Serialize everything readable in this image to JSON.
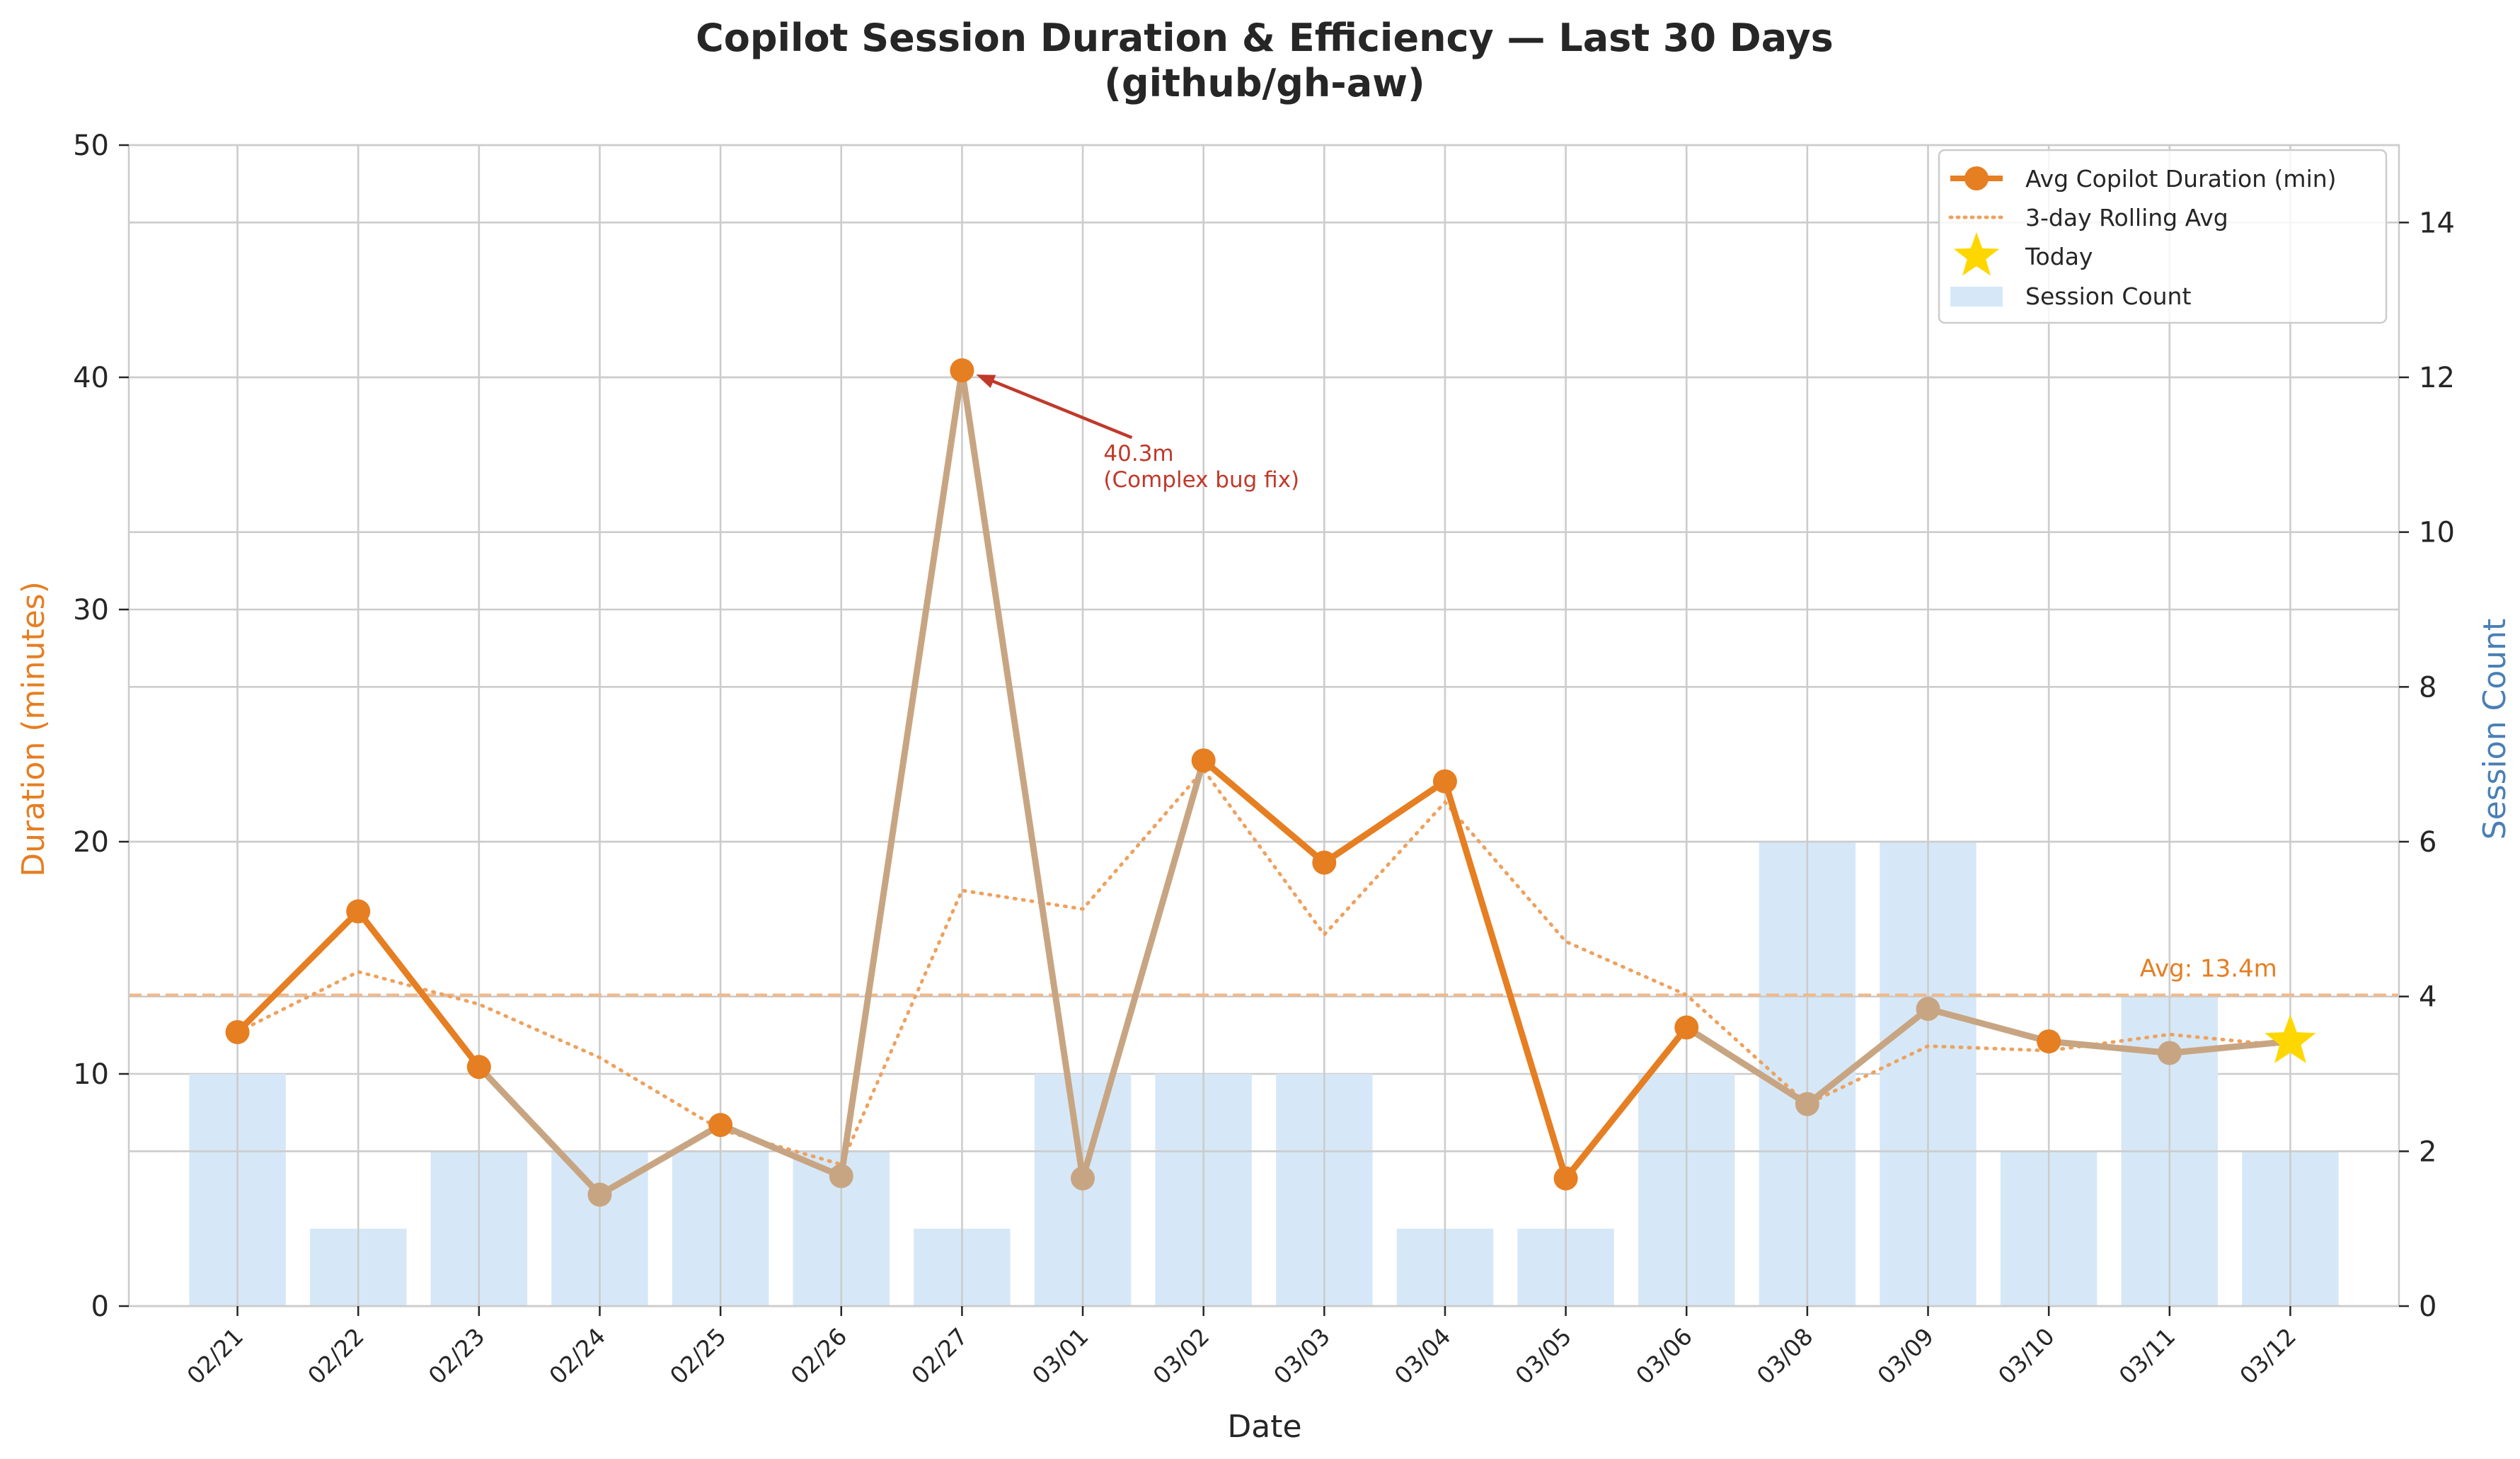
{
  "chart_data": {
    "type": "bar+line",
    "title": "Copilot Session Duration & Efficiency — Last 30 Days",
    "subtitle": "(github/gh-aw)",
    "xlabel": "Date",
    "ylabel_left": "Duration (minutes)",
    "ylabel_right": "Session Count",
    "categories": [
      "02/21",
      "02/22",
      "02/23",
      "02/24",
      "02/25",
      "02/26",
      "02/27",
      "03/01",
      "03/02",
      "03/03",
      "03/04",
      "03/05",
      "03/06",
      "03/08",
      "03/09",
      "03/10",
      "03/11",
      "03/12"
    ],
    "ylim_left": [
      0,
      50
    ],
    "ylim_right": [
      0,
      15
    ],
    "yticks_left": [
      0,
      10,
      20,
      30,
      40,
      50
    ],
    "yticks_right": [
      0,
      2,
      4,
      6,
      8,
      10,
      12,
      14
    ],
    "series": [
      {
        "name": "Avg Copilot Duration (min)",
        "kind": "line",
        "values": [
          11.8,
          17.0,
          10.3,
          4.8,
          7.8,
          5.6,
          40.3,
          5.5,
          23.5,
          19.1,
          22.6,
          5.5,
          12.0,
          8.7,
          12.8,
          11.4,
          10.9,
          11.4
        ],
        "highlighted_low_points": [
          "02/24",
          "02/26",
          "03/01",
          "03/08",
          "03/09",
          "03/11"
        ]
      },
      {
        "name": "3-day Rolling Avg",
        "kind": "line-dotted",
        "values": [
          11.8,
          14.4,
          13.0,
          10.7,
          7.6,
          6.1,
          17.9,
          17.1,
          23.1,
          16.0,
          21.7,
          15.7,
          13.4,
          8.7,
          11.2,
          11.0,
          11.7,
          11.2
        ]
      },
      {
        "name": "Session Count",
        "kind": "bar",
        "axis": "right",
        "values": [
          3,
          1,
          2,
          2,
          2,
          2,
          1,
          3,
          3,
          3,
          1,
          1,
          3,
          6,
          6,
          2,
          4,
          2
        ]
      }
    ],
    "today_marker": {
      "label": "Today",
      "category": "03/12",
      "value": 11.4
    },
    "reference_line": {
      "label": "Avg: 13.4m",
      "value": 13.4
    },
    "annotation": {
      "line1": "40.3m",
      "line2": "(Complex bug fix)",
      "category": "02/27",
      "value": 40.3
    },
    "legend_position": "top-right",
    "legend": [
      "Avg Copilot Duration (min)",
      "3-day Rolling Avg",
      "Today",
      "Session Count"
    ],
    "grid": true,
    "colors": {
      "duration": "#e67e22",
      "duration_low": "#c8a582",
      "rolling": "#eda25f",
      "bars": "#d6e8f7",
      "today": "#ffd700",
      "annotation": "#c0392b",
      "avg_line": "#f0b98a",
      "left_label": "#e67e22",
      "right_label": "#4a7fb5"
    }
  }
}
